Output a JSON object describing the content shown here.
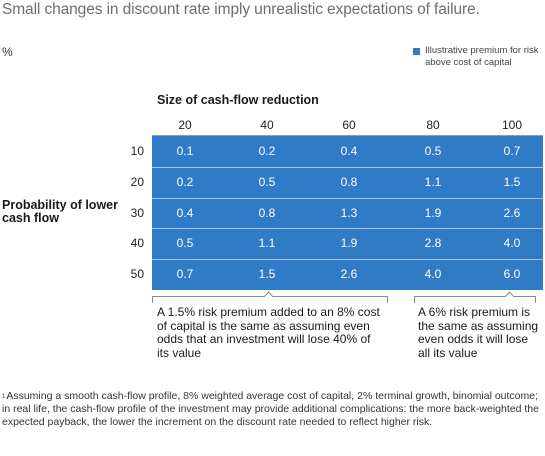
{
  "title": "Small changes in discount rate imply unrealistic expectations of failure.",
  "unit": "%",
  "legend": {
    "label": "Illustrative premium for risk above cost of capital",
    "color": "#2f7bc6"
  },
  "chart_data": {
    "type": "table",
    "column_title": "Size of cash-flow reduction",
    "row_title": "Probability of lower cash flow",
    "columns": [
      "20",
      "40",
      "60",
      "80",
      "100"
    ],
    "rows": [
      "10",
      "20",
      "30",
      "40",
      "50"
    ],
    "values": [
      [
        "0.1",
        "0.2",
        "0.4",
        "0.5",
        "0.7"
      ],
      [
        "0.2",
        "0.5",
        "0.8",
        "1.1",
        "1.5"
      ],
      [
        "0.4",
        "0.8",
        "1.3",
        "1.9",
        "2.6"
      ],
      [
        "0.5",
        "1.1",
        "1.9",
        "2.8",
        "4.0"
      ],
      [
        "0.7",
        "1.5",
        "2.6",
        "4.0",
        "6.0"
      ]
    ]
  },
  "annotations": [
    {
      "text": "A 1.5% risk premium added to an 8% cost of capital is the same as assuming even odds that an investment will lose 40% of its value"
    },
    {
      "text": "A 6% risk premium is the same as assuming even odds it will lose all its value"
    }
  ],
  "footnote": {
    "marker": "1",
    "text": "Assuming a smooth cash-flow profile, 8% weighted average cost of capital, 2% terminal growth, binomial outcome; in real life, the cash-flow profile of the investment may provide additional complications: the more back-weighted the expected payback, the lower the increment on the discount rate needed to reflect higher risk."
  }
}
